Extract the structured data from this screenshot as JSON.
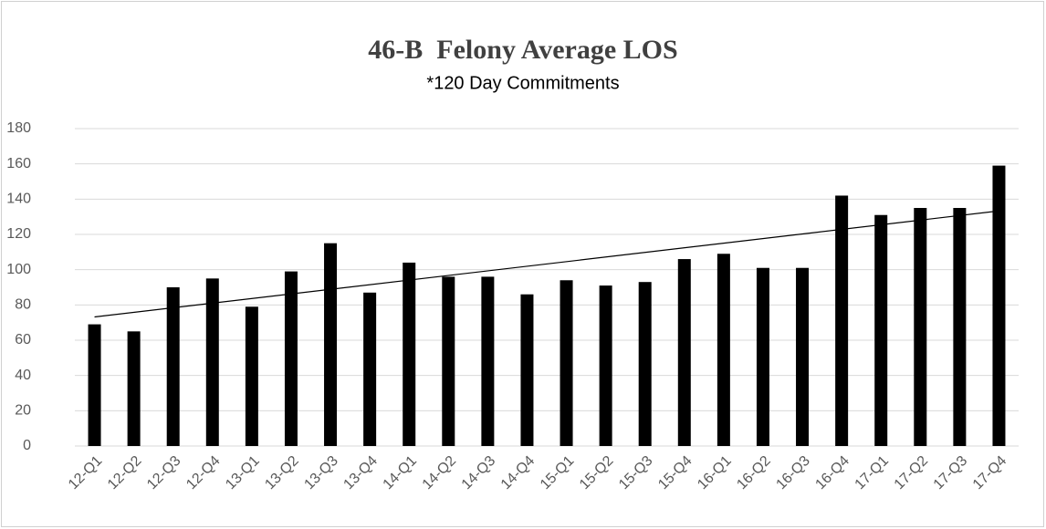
{
  "chart_data": {
    "type": "bar",
    "title": "46-B  Felony Average LOS",
    "subtitle": "*120 Day Commitments",
    "categories": [
      "12-Q1",
      "12-Q2",
      "12-Q3",
      "12-Q4",
      "13-Q1",
      "13-Q2",
      "13-Q3",
      "13-Q4",
      "14-Q1",
      "14-Q2",
      "14-Q3",
      "14-Q4",
      "15-Q1",
      "15-Q2",
      "15-Q3",
      "15-Q4",
      "16-Q1",
      "16-Q2",
      "16-Q3",
      "16-Q4",
      "17-Q1",
      "17-Q2",
      "17-Q3",
      "17-Q4"
    ],
    "values": [
      69,
      65,
      90,
      95,
      79,
      99,
      115,
      87,
      104,
      96,
      96,
      86,
      94,
      91,
      93,
      106,
      109,
      101,
      101,
      142,
      131,
      135,
      135,
      159
    ],
    "color": "#000000",
    "ylim": [
      0,
      180
    ],
    "yticks": [
      0,
      20,
      40,
      60,
      80,
      100,
      120,
      140,
      160,
      180
    ],
    "grid": true,
    "trendline": "linear"
  }
}
